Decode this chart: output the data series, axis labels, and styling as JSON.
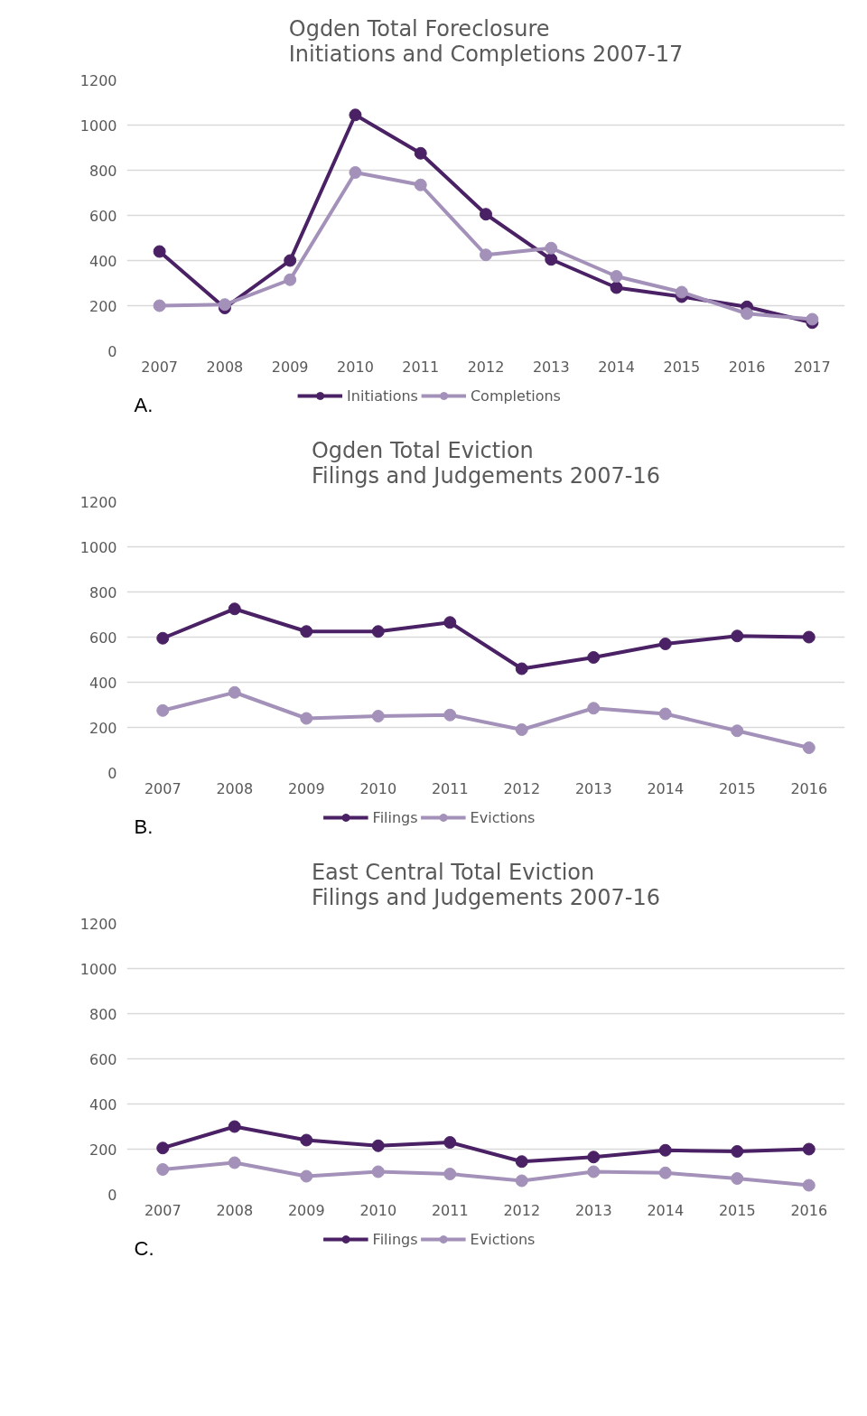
{
  "chart_data": [
    {
      "type": "line",
      "title": "Ogden Total Foreclosure\nInitiations and Completions 2007-17",
      "categories": [
        "2007",
        "2008",
        "2009",
        "2010",
        "2011",
        "2012",
        "2013",
        "2014",
        "2015",
        "2016",
        "2017"
      ],
      "series": [
        {
          "name": "Initiations",
          "color": "#4b2165",
          "values": [
            440,
            190,
            400,
            1045,
            875,
            605,
            405,
            280,
            240,
            195,
            125
          ]
        },
        {
          "name": "Completions",
          "color": "#a391b9",
          "values": [
            200,
            205,
            315,
            790,
            735,
            425,
            455,
            330,
            260,
            165,
            140
          ]
        }
      ],
      "ylim": [
        0,
        1200
      ],
      "yticks": [
        0,
        200,
        400,
        600,
        800,
        1000,
        1200
      ],
      "grid": "y",
      "legend": "bottom",
      "marker": "circle",
      "line_style": "solid",
      "annotations": [
        "A."
      ]
    },
    {
      "type": "line",
      "title": "Ogden Total Eviction\nFilings and Judgements 2007-16",
      "categories": [
        "2007",
        "2008",
        "2009",
        "2010",
        "2011",
        "2012",
        "2013",
        "2014",
        "2015",
        "2016"
      ],
      "series": [
        {
          "name": "Filings",
          "color": "#4b2165",
          "values": [
            595,
            725,
            625,
            625,
            665,
            460,
            510,
            570,
            605,
            600
          ]
        },
        {
          "name": "Evictions",
          "color": "#a391b9",
          "values": [
            275,
            355,
            240,
            250,
            255,
            190,
            285,
            260,
            185,
            110
          ]
        }
      ],
      "ylim": [
        0,
        1200
      ],
      "yticks": [
        0,
        200,
        400,
        600,
        800,
        1000,
        1200
      ],
      "grid": "y",
      "legend": "bottom",
      "marker": "circle",
      "line_style": "solid",
      "annotations": [
        "B."
      ]
    },
    {
      "type": "line",
      "title": "East Central Total Eviction\nFilings and Judgements 2007-16",
      "categories": [
        "2007",
        "2008",
        "2009",
        "2010",
        "2011",
        "2012",
        "2013",
        "2014",
        "2015",
        "2016"
      ],
      "series": [
        {
          "name": "Filings",
          "color": "#4b2165",
          "values": [
            205,
            300,
            240,
            215,
            230,
            145,
            165,
            195,
            190,
            200
          ]
        },
        {
          "name": "Evictions",
          "color": "#a391b9",
          "values": [
            110,
            140,
            80,
            100,
            90,
            60,
            100,
            95,
            70,
            40
          ]
        }
      ],
      "ylim": [
        0,
        1200
      ],
      "yticks": [
        0,
        200,
        400,
        600,
        800,
        1000,
        1200
      ],
      "grid": "y",
      "legend": "bottom",
      "marker": "circle",
      "line_style": "solid",
      "annotations": [
        "C."
      ]
    }
  ]
}
